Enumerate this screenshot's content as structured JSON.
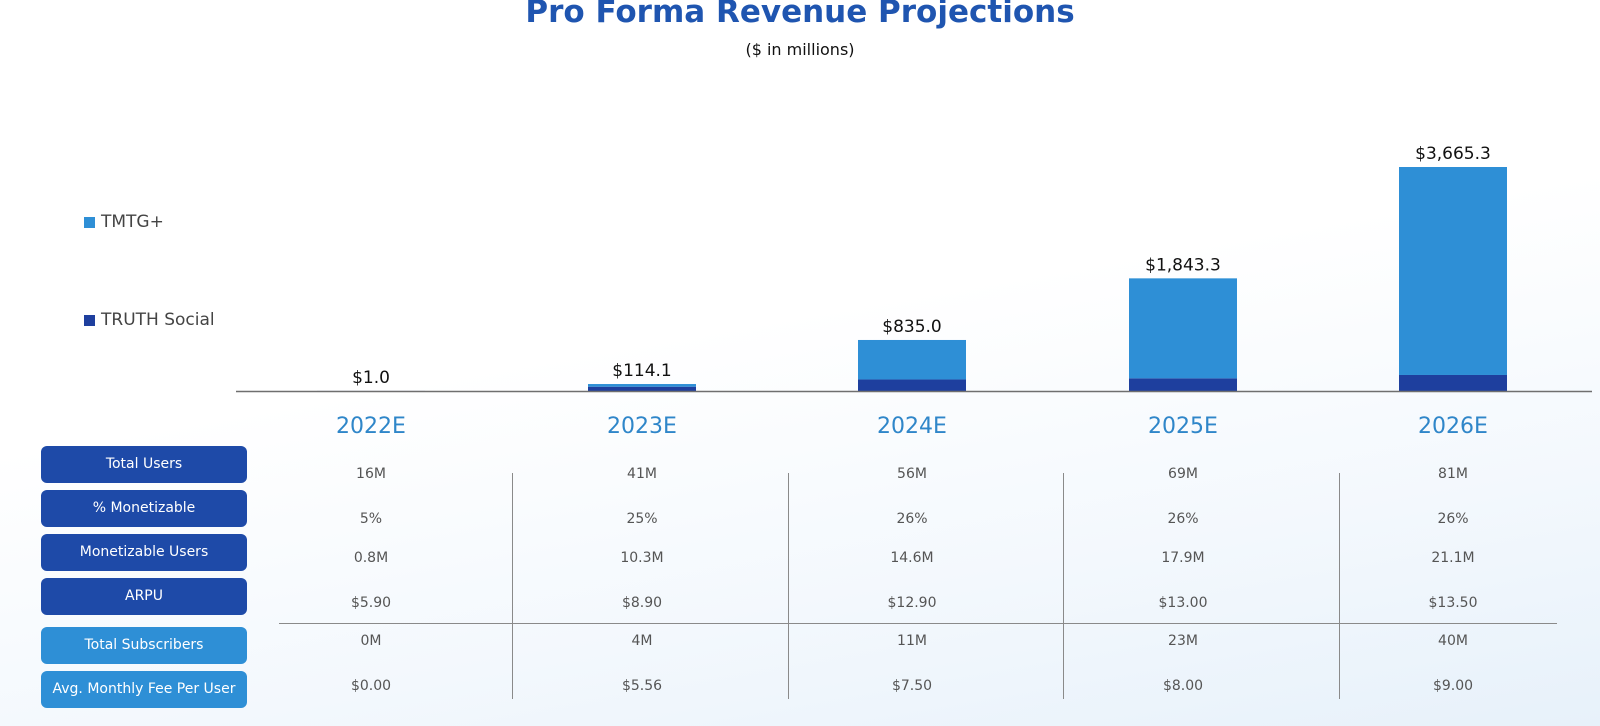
{
  "title": "Pro Forma Revenue Projections",
  "subtitle": "($ in millions)",
  "colors": {
    "tmtg_plus": "#2e8fd6",
    "truth_social": "#1e3f9e",
    "title": "#1f55b0",
    "year_label": "#2f86c9"
  },
  "legend": [
    {
      "label": "TMTG+",
      "color": "#2e8fd6"
    },
    {
      "label": "TRUTH Social",
      "color": "#1e3f9e"
    }
  ],
  "chart_data": {
    "type": "bar",
    "stacked": true,
    "title": "Pro Forma Revenue Projections",
    "subtitle": "($ in millions)",
    "categories": [
      "2022E",
      "2023E",
      "2024E",
      "2025E",
      "2026E"
    ],
    "series": [
      {
        "name": "TRUTH Social",
        "values": [
          1.0,
          70,
          189,
          207,
          262
        ]
      },
      {
        "name": "TMTG+",
        "values": [
          0,
          44.1,
          646,
          1636.3,
          3403.3
        ]
      }
    ],
    "totals": [
      1.0,
      114.1,
      835.0,
      1843.3,
      3665.3
    ],
    "total_labels": [
      "$1.0",
      "$114.1",
      "$835.0",
      "$1,843.3",
      "$3,665.3"
    ],
    "ylim": [
      0,
      3665.3
    ],
    "grid": false,
    "legend_position": "left"
  },
  "table": {
    "rows": [
      {
        "label": "Total Users",
        "style": "dark",
        "values": [
          "16M",
          "41M",
          "56M",
          "69M",
          "81M"
        ]
      },
      {
        "label": "% Monetizable",
        "style": "dark",
        "values": [
          "5%",
          "25%",
          "26%",
          "26%",
          "26%"
        ]
      },
      {
        "label": "Monetizable Users",
        "style": "dark",
        "values": [
          "0.8M",
          "10.3M",
          "14.6M",
          "17.9M",
          "21.1M"
        ]
      },
      {
        "label": "ARPU",
        "style": "dark",
        "values": [
          "$5.90",
          "$8.90",
          "$12.90",
          "$13.00",
          "$13.50"
        ]
      },
      {
        "label": "Total Subscribers",
        "style": "light",
        "values": [
          "0M",
          "4M",
          "11M",
          "23M",
          "40M"
        ]
      },
      {
        "label": "Avg. Monthly Fee Per User",
        "style": "light",
        "values": [
          "$0.00",
          "$5.56",
          "$7.50",
          "$8.00",
          "$9.00"
        ]
      }
    ]
  }
}
